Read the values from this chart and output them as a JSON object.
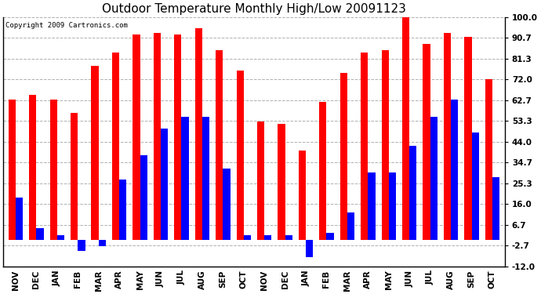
{
  "title": "Outdoor Temperature Monthly High/Low 20091123",
  "copyright": "Copyright 2009 Cartronics.com",
  "months": [
    "NOV",
    "DEC",
    "JAN",
    "FEB",
    "MAR",
    "APR",
    "MAY",
    "JUN",
    "JUL",
    "AUG",
    "SEP",
    "OCT",
    "NOV",
    "DEC",
    "JAN",
    "FEB",
    "MAR",
    "APR",
    "MAY",
    "JUN",
    "JUL",
    "AUG",
    "SEP",
    "OCT"
  ],
  "highs": [
    63,
    65,
    63,
    57,
    78,
    84,
    92,
    93,
    92,
    95,
    85,
    76,
    53,
    52,
    40,
    62,
    75,
    84,
    85,
    100,
    88,
    93,
    91,
    72
  ],
  "lows": [
    19,
    5,
    2,
    -5,
    -3,
    27,
    38,
    50,
    55,
    55,
    32,
    2,
    2,
    2,
    -8,
    3,
    12,
    30,
    30,
    42,
    55,
    63,
    48,
    28
  ],
  "ylim": [
    -12.0,
    100.0
  ],
  "yticks": [
    -12.0,
    -2.7,
    6.7,
    16.0,
    25.3,
    34.7,
    44.0,
    53.3,
    62.7,
    72.0,
    81.3,
    90.7,
    100.0
  ],
  "bar_color_high": "#ff0000",
  "bar_color_low": "#0000ff",
  "background_color": "#ffffff",
  "grid_color": "#b0b0b0",
  "title_fontsize": 11,
  "tick_fontsize": 7.5,
  "bar_width": 0.35,
  "figwidth": 6.9,
  "figheight": 3.75,
  "dpi": 100
}
